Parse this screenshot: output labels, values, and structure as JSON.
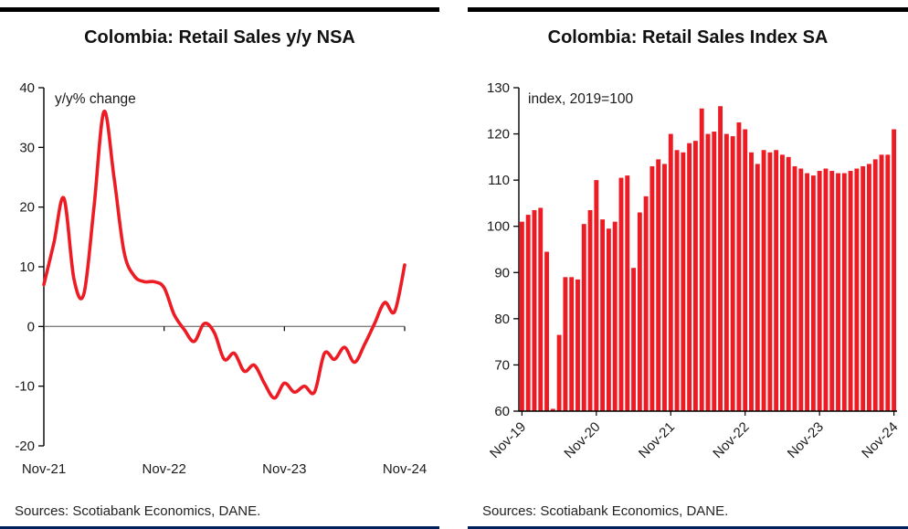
{
  "colors": {
    "red": "#ed1c24",
    "axis": "#000000",
    "zero_line": "#808080",
    "top_border": "#000000",
    "bottom_border": "#00205b",
    "text": "#1a1a1a"
  },
  "chart_data": [
    {
      "type": "line",
      "title": "Colombia: Retail Sales y/y NSA",
      "annotation": "y/y% change",
      "sources": "Sources: Scotiabank Economics, DANE.",
      "ylabel": "y/y% change",
      "ylim": [
        -20,
        40
      ],
      "ytick_step": 10,
      "grid": false,
      "x_tick_labels": [
        "Nov-21",
        "Nov-22",
        "Nov-23",
        "Nov-24"
      ],
      "months": [
        "Nov-21",
        "Dec-21",
        "Jan-22",
        "Feb-22",
        "Mar-22",
        "Apr-22",
        "May-22",
        "Jun-22",
        "Jul-22",
        "Aug-22",
        "Sep-22",
        "Oct-22",
        "Nov-22",
        "Dec-22",
        "Jan-23",
        "Feb-23",
        "Mar-23",
        "Apr-23",
        "May-23",
        "Jun-23",
        "Jul-23",
        "Aug-23",
        "Sep-23",
        "Oct-23",
        "Nov-23",
        "Dec-23",
        "Jan-24",
        "Feb-24",
        "Mar-24",
        "Apr-24",
        "May-24",
        "Jun-24",
        "Jul-24",
        "Aug-24",
        "Sep-24",
        "Oct-24",
        "Nov-24"
      ],
      "values": [
        7,
        14,
        21.5,
        8,
        5.5,
        20,
        36,
        25,
        12.5,
        8.5,
        7.5,
        7.5,
        6.5,
        2,
        -0.5,
        -2.5,
        0.5,
        -1,
        -5.5,
        -4.5,
        -7.5,
        -6.5,
        -9.5,
        -12,
        -9.5,
        -11,
        -10,
        -11,
        -4.5,
        -5.5,
        -3.5,
        -6,
        -3,
        0.5,
        4,
        2.5,
        10.3
      ]
    },
    {
      "type": "bar",
      "title": "Colombia: Retail Sales Index SA",
      "annotation": "index, 2019=100",
      "sources": "Sources: Scotiabank Economics, DANE.",
      "ylabel": "index, 2019=100",
      "ylim": [
        60,
        130
      ],
      "ytick_step": 10,
      "grid": false,
      "x_tick_labels": [
        "Nov-19",
        "Nov-20",
        "Nov-21",
        "Nov-22",
        "Nov-23",
        "Nov-24"
      ],
      "months": [
        "Nov-19",
        "Dec-19",
        "Jan-20",
        "Feb-20",
        "Mar-20",
        "Apr-20",
        "May-20",
        "Jun-20",
        "Jul-20",
        "Aug-20",
        "Sep-20",
        "Oct-20",
        "Nov-20",
        "Dec-20",
        "Jan-21",
        "Feb-21",
        "Mar-21",
        "Apr-21",
        "May-21",
        "Jun-21",
        "Jul-21",
        "Aug-21",
        "Sep-21",
        "Oct-21",
        "Nov-21",
        "Dec-21",
        "Jan-22",
        "Feb-22",
        "Mar-22",
        "Apr-22",
        "May-22",
        "Jun-22",
        "Jul-22",
        "Aug-22",
        "Sep-22",
        "Oct-22",
        "Nov-22",
        "Dec-22",
        "Jan-23",
        "Feb-23",
        "Mar-23",
        "Apr-23",
        "May-23",
        "Jun-23",
        "Jul-23",
        "Aug-23",
        "Sep-23",
        "Oct-23",
        "Nov-23",
        "Dec-23",
        "Jan-24",
        "Feb-24",
        "Mar-24",
        "Apr-24",
        "May-24",
        "Jun-24",
        "Jul-24",
        "Aug-24",
        "Sep-24",
        "Oct-24",
        "Nov-24"
      ],
      "values": [
        101,
        102.5,
        103.5,
        104,
        94.5,
        60.5,
        76.5,
        89,
        89,
        88.5,
        100.5,
        103.5,
        110,
        101.5,
        99.5,
        101,
        110.5,
        111,
        91,
        103,
        106.5,
        113,
        114.5,
        113.5,
        120,
        116.5,
        116,
        118,
        118.5,
        125.5,
        120,
        120.5,
        126,
        120,
        119.5,
        122.5,
        121,
        116,
        113.5,
        116.5,
        116,
        116.5,
        115.5,
        115,
        113,
        112.5,
        111.5,
        111,
        112,
        112.5,
        112,
        111.5,
        111.5,
        112,
        112.5,
        113,
        113.5,
        114.5,
        115.5,
        115.5,
        121
      ]
    }
  ]
}
